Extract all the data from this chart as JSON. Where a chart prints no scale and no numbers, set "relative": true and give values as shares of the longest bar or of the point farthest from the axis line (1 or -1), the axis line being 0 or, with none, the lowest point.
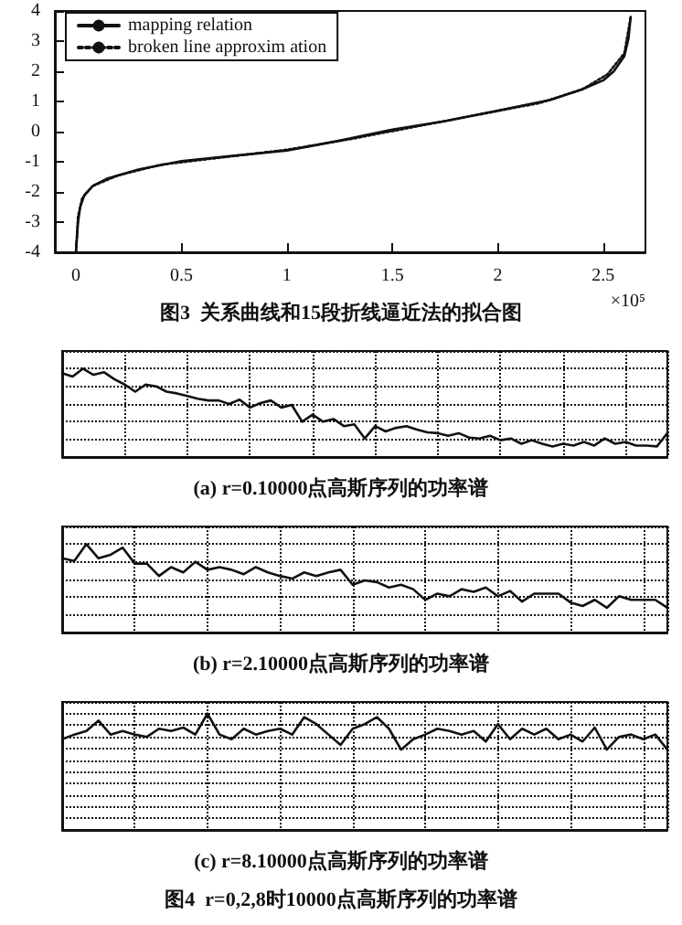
{
  "chart_data": [
    {
      "type": "line",
      "title": "图3  关系曲线和15段折线逼近法的拟合图",
      "xlabel": "×10⁵",
      "legend": "top left",
      "marker": "none",
      "grid": false,
      "xlim": [
        -0.1,
        2.7
      ],
      "xticks": [
        0,
        0.5,
        1,
        1.5,
        2,
        2.5
      ],
      "ylim": [
        -4,
        4
      ],
      "yticks": [
        -4,
        -3,
        -2,
        -1,
        0,
        1,
        2,
        3,
        4
      ],
      "series": [
        {
          "name": "mapping relation",
          "color": "#111111",
          "line_style": "solid",
          "x": [
            0,
            0.01,
            0.02,
            0.04,
            0.08,
            0.15,
            0.3,
            0.5,
            0.75,
            1,
            1.25,
            1.5,
            1.75,
            2,
            2.25,
            2.4,
            2.5,
            2.55,
            2.6,
            2.62,
            2.63
          ],
          "values": [
            -4,
            -3,
            -2.5,
            -2.1,
            -1.8,
            -1.55,
            -1.25,
            -0.98,
            -0.8,
            -0.63,
            -0.3,
            0.07,
            0.35,
            0.7,
            1.05,
            1.4,
            1.7,
            2,
            2.5,
            3.1,
            3.8
          ]
        },
        {
          "name": "broken line approxim ation",
          "color": "#111111",
          "line_style": "dotted",
          "x": [
            0,
            0.01,
            0.03,
            0.08,
            0.2,
            0.4,
            0.7,
            1,
            1.3,
            1.6,
            1.9,
            2.2,
            2.4,
            2.52,
            2.6,
            2.63
          ],
          "values": [
            -4,
            -2.8,
            -2.2,
            -1.8,
            -1.45,
            -1.1,
            -0.85,
            -0.6,
            -0.25,
            0.15,
            0.55,
            0.95,
            1.4,
            1.9,
            2.6,
            3.8
          ]
        }
      ]
    },
    {
      "type": "line",
      "title": "(a) r=0.10000点高斯序列的功率谱",
      "relative": true,
      "grid": true,
      "tick_labels": false,
      "marker": "none",
      "color": "#111111",
      "categories": [
        null,
        null,
        null,
        null,
        null,
        null,
        null,
        null,
        null,
        null,
        null,
        null,
        null,
        null,
        null,
        null,
        null,
        null,
        null,
        null,
        null,
        null,
        null,
        null,
        null,
        null,
        null,
        null,
        null,
        null,
        null,
        null,
        null,
        null,
        null,
        null,
        null,
        null,
        null,
        null,
        null,
        null,
        null,
        null,
        null,
        null,
        null,
        null,
        null,
        null,
        null,
        null,
        null,
        null,
        null,
        null,
        null,
        null,
        null
      ],
      "values": [
        0.95,
        0.91,
        1,
        0.93,
        0.96,
        0.88,
        0.82,
        0.74,
        0.82,
        0.8,
        0.74,
        0.72,
        0.69,
        0.66,
        0.64,
        0.64,
        0.6,
        0.65,
        0.56,
        0.61,
        0.64,
        0.56,
        0.59,
        0.4,
        0.48,
        0.4,
        0.43,
        0.35,
        0.37,
        0.21,
        0.35,
        0.29,
        0.33,
        0.35,
        0.31,
        0.28,
        0.27,
        0.24,
        0.27,
        0.22,
        0.21,
        0.24,
        0.19,
        0.21,
        0.15,
        0.19,
        0.15,
        0.12,
        0.15,
        0.13,
        0.17,
        0.13,
        0.21,
        0.15,
        0.17,
        0.13,
        0.13,
        0.12,
        0.27
      ]
    },
    {
      "type": "line",
      "title": "(b) r=2.10000点高斯序列的功率谱",
      "relative": true,
      "grid": true,
      "tick_labels": false,
      "marker": "none",
      "color": "#111111",
      "categories": [
        null,
        null,
        null,
        null,
        null,
        null,
        null,
        null,
        null,
        null,
        null,
        null,
        null,
        null,
        null,
        null,
        null,
        null,
        null,
        null,
        null,
        null,
        null,
        null,
        null,
        null,
        null,
        null,
        null,
        null,
        null,
        null,
        null,
        null,
        null,
        null,
        null,
        null,
        null,
        null,
        null,
        null,
        null,
        null,
        null,
        null,
        null,
        null,
        null,
        null,
        null
      ],
      "values": [
        0.84,
        0.81,
        1,
        0.84,
        0.88,
        0.96,
        0.78,
        0.78,
        0.64,
        0.74,
        0.68,
        0.8,
        0.71,
        0.74,
        0.71,
        0.66,
        0.74,
        0.68,
        0.64,
        0.61,
        0.68,
        0.64,
        0.68,
        0.71,
        0.54,
        0.59,
        0.57,
        0.51,
        0.54,
        0.49,
        0.37,
        0.44,
        0.41,
        0.49,
        0.46,
        0.51,
        0.41,
        0.47,
        0.35,
        0.44,
        0.44,
        0.44,
        0.34,
        0.3,
        0.37,
        0.28,
        0.41,
        0.37,
        0.37,
        0.37,
        0.28
      ]
    },
    {
      "type": "line",
      "title": "(c) r=8.10000点高斯序列的功率谱",
      "annotations": [
        "图4  r=0,2,8时10000点高斯序列的功率谱"
      ],
      "relative": true,
      "grid": true,
      "tick_labels": false,
      "marker": "none",
      "color": "#111111",
      "categories": [
        null,
        null,
        null,
        null,
        null,
        null,
        null,
        null,
        null,
        null,
        null,
        null,
        null,
        null,
        null,
        null,
        null,
        null,
        null,
        null,
        null,
        null,
        null,
        null,
        null,
        null,
        null,
        null,
        null,
        null,
        null,
        null,
        null,
        null,
        null,
        null,
        null,
        null,
        null,
        null,
        null,
        null,
        null,
        null,
        null,
        null,
        null,
        null,
        null,
        null,
        null
      ],
      "values": [
        0.78,
        0.82,
        0.85,
        0.94,
        0.82,
        0.85,
        0.82,
        0.8,
        0.87,
        0.85,
        0.88,
        0.82,
        1,
        0.82,
        0.78,
        0.87,
        0.82,
        0.85,
        0.87,
        0.82,
        0.97,
        0.91,
        0.82,
        0.73,
        0.87,
        0.91,
        0.97,
        0.87,
        0.69,
        0.78,
        0.82,
        0.87,
        0.85,
        0.82,
        0.85,
        0.76,
        0.91,
        0.78,
        0.87,
        0.82,
        0.87,
        0.78,
        0.82,
        0.76,
        0.88,
        0.69,
        0.8,
        0.82,
        0.78,
        0.82,
        0.69
      ]
    }
  ]
}
